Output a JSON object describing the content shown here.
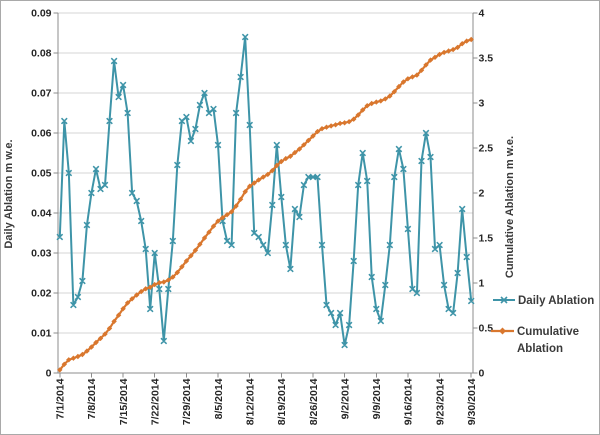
{
  "window": {
    "background_color": "#FFFFFF",
    "frame_border_color": "#A9A9A9",
    "gridline_color": "#D6D6D6",
    "axis_line_color": "#8C8C8C",
    "tick_text_color": "#262626"
  },
  "chart_data": {
    "type": "line",
    "title": "",
    "grid": true,
    "x": [
      "7/1/2014",
      "7/2/2014",
      "7/3/2014",
      "7/4/2014",
      "7/5/2014",
      "7/6/2014",
      "7/7/2014",
      "7/8/2014",
      "7/9/2014",
      "7/10/2014",
      "7/11/2014",
      "7/12/2014",
      "7/13/2014",
      "7/14/2014",
      "7/15/2014",
      "7/16/2014",
      "7/17/2014",
      "7/18/2014",
      "7/19/2014",
      "7/20/2014",
      "7/21/2014",
      "7/22/2014",
      "7/23/2014",
      "7/24/2014",
      "7/25/2014",
      "7/26/2014",
      "7/27/2014",
      "7/28/2014",
      "7/29/2014",
      "7/30/2014",
      "7/31/2014",
      "8/1/2014",
      "8/2/2014",
      "8/3/2014",
      "8/4/2014",
      "8/5/2014",
      "8/6/2014",
      "8/7/2014",
      "8/8/2014",
      "8/9/2014",
      "8/10/2014",
      "8/11/2014",
      "8/12/2014",
      "8/13/2014",
      "8/14/2014",
      "8/15/2014",
      "8/16/2014",
      "8/17/2014",
      "8/18/2014",
      "8/19/2014",
      "8/20/2014",
      "8/21/2014",
      "8/22/2014",
      "8/23/2014",
      "8/24/2014",
      "8/25/2014",
      "8/26/2014",
      "8/27/2014",
      "8/28/2014",
      "8/29/2014",
      "8/30/2014",
      "8/31/2014",
      "9/1/2014",
      "9/2/2014",
      "9/3/2014",
      "9/4/2014",
      "9/5/2014",
      "9/6/2014",
      "9/7/2014",
      "9/8/2014",
      "9/9/2014",
      "9/10/2014",
      "9/11/2014",
      "9/12/2014",
      "9/13/2014",
      "9/14/2014",
      "9/15/2014",
      "9/16/2014",
      "9/17/2014",
      "9/18/2014",
      "9/19/2014",
      "9/20/2014",
      "9/21/2014",
      "9/22/2014",
      "9/23/2014",
      "9/24/2014",
      "9/25/2014",
      "9/26/2014",
      "9/27/2014",
      "9/28/2014",
      "9/29/2014",
      "9/30/2014"
    ],
    "x_tick_labels": [
      "7/1/2014",
      "7/8/2014",
      "7/15/2014",
      "7/22/2014",
      "7/29/2014",
      "8/5/2014",
      "8/12/2014",
      "8/19/2014",
      "8/26/2014",
      "9/2/2014",
      "9/9/2014",
      "9/16/2014",
      "9/23/2014",
      "9/30/2014"
    ],
    "series": [
      {
        "name": "Daily Ablation",
        "axis": "left",
        "color": "#3E94A8",
        "marker": "x",
        "values": [
          0.034,
          0.063,
          0.05,
          0.017,
          0.019,
          0.023,
          0.037,
          0.045,
          0.051,
          0.046,
          0.047,
          0.063,
          0.078,
          0.069,
          0.072,
          0.065,
          0.045,
          0.043,
          0.038,
          0.031,
          0.016,
          0.03,
          0.021,
          0.008,
          0.021,
          0.033,
          0.052,
          0.063,
          0.064,
          0.058,
          0.061,
          0.067,
          0.07,
          0.065,
          0.066,
          0.057,
          0.038,
          0.033,
          0.032,
          0.065,
          0.074,
          0.084,
          0.062,
          0.035,
          0.034,
          0.032,
          0.03,
          0.042,
          0.057,
          0.044,
          0.032,
          0.026,
          0.041,
          0.039,
          0.047,
          0.049,
          0.049,
          0.049,
          0.032,
          0.017,
          0.015,
          0.012,
          0.015,
          0.007,
          0.012,
          0.028,
          0.047,
          0.055,
          0.048,
          0.024,
          0.016,
          0.013,
          0.022,
          0.032,
          0.049,
          0.056,
          0.051,
          0.036,
          0.021,
          0.02,
          0.053,
          0.06,
          0.054,
          0.031,
          0.032,
          0.022,
          0.016,
          0.015,
          0.025,
          0.041,
          0.029,
          0.018
        ]
      },
      {
        "name": "Cumulative Ablation",
        "axis": "right",
        "color": "#D9772E",
        "marker": "diamond",
        "values": [
          0.034,
          0.097,
          0.147,
          0.164,
          0.183,
          0.206,
          0.243,
          0.288,
          0.339,
          0.385,
          0.432,
          0.495,
          0.573,
          0.642,
          0.714,
          0.779,
          0.824,
          0.867,
          0.905,
          0.936,
          0.952,
          0.982,
          1.003,
          1.011,
          1.032,
          1.065,
          1.117,
          1.18,
          1.244,
          1.302,
          1.363,
          1.43,
          1.5,
          1.565,
          1.631,
          1.688,
          1.726,
          1.759,
          1.791,
          1.856,
          1.93,
          2.014,
          2.076,
          2.111,
          2.145,
          2.177,
          2.207,
          2.249,
          2.306,
          2.35,
          2.382,
          2.408,
          2.449,
          2.488,
          2.535,
          2.584,
          2.633,
          2.682,
          2.714,
          2.731,
          2.746,
          2.758,
          2.773,
          2.78,
          2.792,
          2.82,
          2.867,
          2.922,
          2.97,
          2.994,
          3.01,
          3.023,
          3.045,
          3.077,
          3.126,
          3.182,
          3.233,
          3.269,
          3.29,
          3.31,
          3.363,
          3.423,
          3.477,
          3.508,
          3.54,
          3.562,
          3.578,
          3.593,
          3.618,
          3.659,
          3.688,
          3.706
        ]
      }
    ],
    "left_axis": {
      "title": "Daily Ablation m w.e.",
      "min": 0,
      "max": 0.09,
      "step": 0.01,
      "tick_labels": [
        "0",
        "0.01",
        "0.02",
        "0.03",
        "0.04",
        "0.05",
        "0.06",
        "0.07",
        "0.08",
        "0.09"
      ]
    },
    "right_axis": {
      "title": "Cumulative Ablation m w.e.",
      "min": 0,
      "max": 4,
      "step": 0.5,
      "tick_labels": [
        "0",
        "0.5",
        "1",
        "1.5",
        "2",
        "2.5",
        "3",
        "3.5",
        "4"
      ]
    },
    "legend": {
      "position": "right",
      "entries": [
        {
          "label": "Daily Ablation",
          "lines": [
            "Daily Ablation"
          ]
        },
        {
          "label": "Cumulative Ablation",
          "lines": [
            "Cumulative",
            "Ablation"
          ]
        }
      ]
    }
  }
}
